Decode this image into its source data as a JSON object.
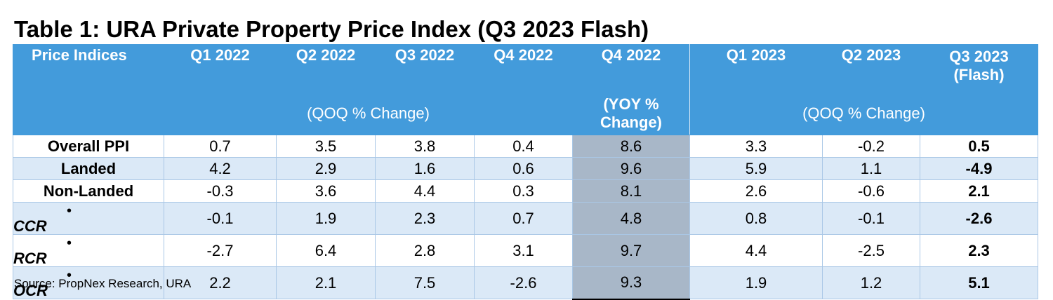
{
  "title": "Table 1: URA Private Property Price Index (Q3 2023 Flash)",
  "header": {
    "first_col": "Price Indices",
    "quarters": [
      "Q1 2022",
      "Q2 2022",
      "Q3 2022",
      "Q4 2022",
      "Q4 2022",
      "Q1 2023",
      "Q2 2023",
      "Q3 2023 (Flash)"
    ],
    "qoq_left": "(QOQ % Change)",
    "yoy": "(YOY % Change)",
    "qoq_right": "(QOQ % Change)"
  },
  "rows": [
    {
      "label": "Overall PPI",
      "bullet": "",
      "values": [
        "0.7",
        "3.5",
        "3.8",
        "0.4",
        "8.6",
        "3.3",
        "-0.2",
        "0.5"
      ]
    },
    {
      "label": "Landed",
      "bullet": "",
      "values": [
        "4.2",
        "2.9",
        "1.6",
        "0.6",
        "9.6",
        "5.9",
        "1.1",
        "-4.9"
      ]
    },
    {
      "label": "Non-Landed",
      "bullet": "",
      "values": [
        "-0.3",
        "3.6",
        "4.4",
        "0.3",
        "8.1",
        "2.6",
        "-0.6",
        "2.1"
      ]
    },
    {
      "label": "CCR",
      "bullet": "•",
      "values": [
        "-0.1",
        "1.9",
        "2.3",
        "0.7",
        "4.8",
        "0.8",
        "-0.1",
        "-2.6"
      ]
    },
    {
      "label": "RCR",
      "bullet": "•",
      "values": [
        "-2.7",
        "6.4",
        "2.8",
        "3.1",
        "9.7",
        "4.4",
        "-2.5",
        "2.3"
      ]
    },
    {
      "label": "OCR",
      "bullet": "•",
      "values": [
        "2.2",
        "2.1",
        "7.5",
        "-2.6",
        "9.3",
        "1.9",
        "1.2",
        "5.1"
      ]
    }
  ],
  "source": "Source: PropNex Research, URA",
  "colors": {
    "header_bg": "#439bdb",
    "alt_row": "#dbe9f7",
    "yoy_col": "#a8b7c8"
  }
}
